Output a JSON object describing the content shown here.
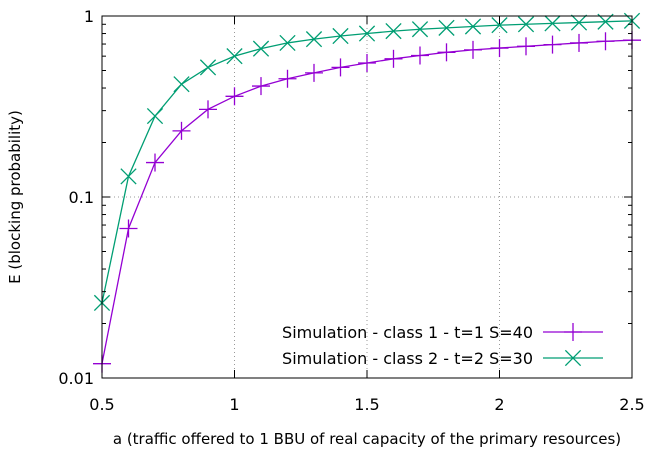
{
  "chart_data": {
    "type": "line",
    "title": "",
    "xlabel": "a (traffic offered to 1 BBU of real capacity of the primary resources)",
    "ylabel": "E (blocking probability)",
    "xlim": [
      0.5,
      2.5
    ],
    "ylim": [
      0.01,
      1
    ],
    "yscale": "log",
    "grid": true,
    "legend_position": "bottom-right",
    "x_ticks": [
      0.5,
      1,
      1.5,
      2,
      2.5
    ],
    "x_tick_labels": [
      "0.5",
      "1",
      "1.5",
      "2",
      "2.5"
    ],
    "y_ticks": [
      0.01,
      0.1,
      1
    ],
    "y_tick_labels": [
      "0.01",
      "0.1",
      "1"
    ],
    "x": [
      0.5,
      0.6,
      0.7,
      0.8,
      0.9,
      1.0,
      1.1,
      1.2,
      1.3,
      1.4,
      1.5,
      1.6,
      1.7,
      1.8,
      1.9,
      2.0,
      2.1,
      2.2,
      2.3,
      2.4,
      2.5
    ],
    "series": [
      {
        "name": "Simulation - class 1 - t=1 S=40",
        "marker": "plus",
        "color": "#9400d3",
        "values": [
          0.012,
          0.067,
          0.155,
          0.232,
          0.305,
          0.36,
          0.41,
          0.45,
          0.485,
          0.52,
          0.55,
          0.58,
          0.605,
          0.63,
          0.65,
          0.665,
          0.68,
          0.695,
          0.71,
          0.725,
          0.735
        ]
      },
      {
        "name": "Simulation - class 2 - t=2 S=30",
        "marker": "cross",
        "color": "#009e73",
        "values": [
          0.026,
          0.13,
          0.28,
          0.42,
          0.52,
          0.6,
          0.66,
          0.71,
          0.745,
          0.775,
          0.8,
          0.825,
          0.845,
          0.86,
          0.875,
          0.89,
          0.9,
          0.91,
          0.92,
          0.93,
          0.94
        ]
      }
    ]
  }
}
